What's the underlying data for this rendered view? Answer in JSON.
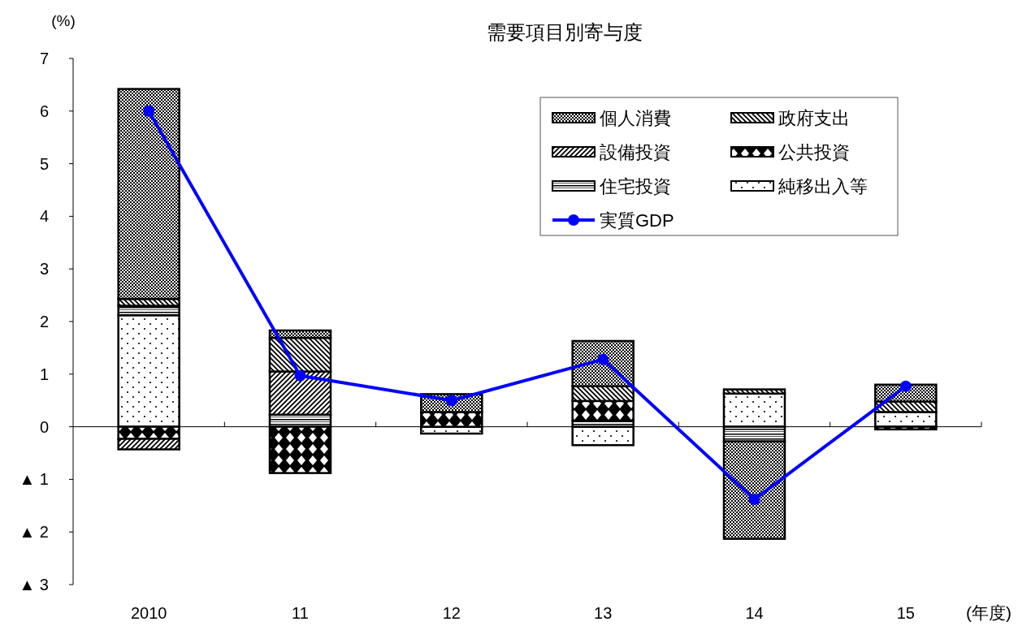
{
  "chart_data": {
    "type": "bar",
    "stacked": true,
    "title": "需要項目別寄与度",
    "ylabel": "(%)",
    "xlabel": "(年度)",
    "categories": [
      "2010",
      "11",
      "12",
      "13",
      "14",
      "15"
    ],
    "series": [
      {
        "name": "純移出入等",
        "color": "#000000",
        "values": [
          2.12,
          null,
          -0.13,
          -0.35,
          0.63,
          0.28
        ]
      },
      {
        "name": "住宅投資",
        "color": "#000000",
        "values": [
          0.18,
          0.23,
          null,
          0.11,
          -0.28,
          null
        ]
      },
      {
        "name": "公共投資",
        "color": "#000000",
        "values": [
          -0.23,
          -0.88,
          0.28,
          0.38,
          null,
          -0.05
        ]
      },
      {
        "name": "設備投資",
        "color": "#000000",
        "values": [
          -0.2,
          0.82,
          null,
          null,
          null,
          null
        ]
      },
      {
        "name": "政府支出",
        "color": "#000000",
        "values": [
          0.13,
          0.64,
          null,
          0.28,
          0.08,
          0.2
        ]
      },
      {
        "name": "個人消費",
        "color": "#000000",
        "values": [
          3.99,
          0.14,
          0.34,
          0.86,
          -1.85,
          0.32
        ]
      },
      {
        "name": "実質GDP",
        "type": "line",
        "color": "#0000ff",
        "marker": "circle",
        "values": [
          6.0,
          0.97,
          0.5,
          1.28,
          -1.38,
          0.77
        ]
      }
    ],
    "ylim": [
      -3,
      7
    ],
    "yticks": [
      {
        "value": -3,
        "label": "▲ 3"
      },
      {
        "value": -2,
        "label": "▲ 2"
      },
      {
        "value": -1,
        "label": "▲ 1"
      },
      0,
      1,
      2,
      3,
      4,
      5,
      6,
      7
    ],
    "legend": "top right"
  }
}
